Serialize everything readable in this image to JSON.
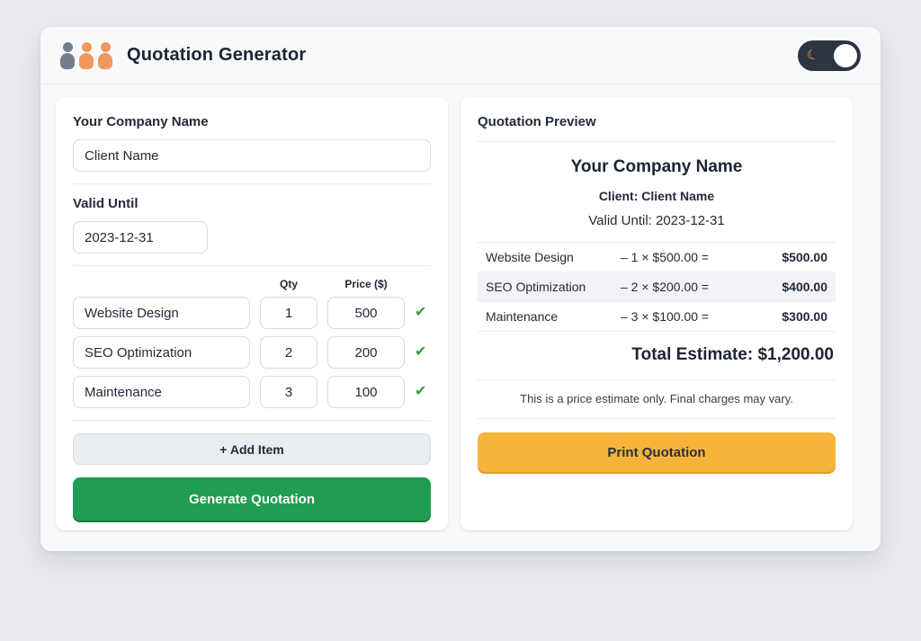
{
  "header": {
    "title": "Quotation Generator",
    "theme_toggle": {
      "moon_glyph": "☾"
    }
  },
  "icons": {
    "check": "✔"
  },
  "form": {
    "company_label": "Your Company Name",
    "company_value": "Client Name",
    "valid_until_label": "Valid Until",
    "valid_until_value": "2023-12-31",
    "qty_header": "Qty",
    "price_header": "Price ($)",
    "items": [
      {
        "name": "Website Design",
        "qty": "1",
        "price": "500"
      },
      {
        "name": "SEO Optimization",
        "qty": "2",
        "price": "200"
      },
      {
        "name": "Maintenance",
        "qty": "3",
        "price": "100"
      }
    ],
    "add_item_label": "+ Add Item",
    "generate_label": "Generate Quotation"
  },
  "preview": {
    "title": "Quotation Preview",
    "company_name": "Your Company Name",
    "client_line": "Client: Client Name",
    "valid_line": "Valid Until: 2023-12-31",
    "rows": [
      {
        "name": "Website Design",
        "formula": "–  1 × $500.00 =",
        "amount": "$500.00"
      },
      {
        "name": "SEO Optimization",
        "formula": "–  2 × $200.00 =",
        "amount": "$400.00"
      },
      {
        "name": "Maintenance",
        "formula": "–  3 × $100.00 =",
        "amount": "$300.00"
      }
    ],
    "total_line": "Total Estimate: $1,200.00",
    "disclaimer": "This is a price estimate only. Final charges may vary.",
    "print_label": "Print Quotation"
  },
  "colors": {
    "accent_green": "#1f9d52",
    "accent_yellow": "#f6b53a",
    "check_green": "#2f9e44",
    "toggle_dark": "#2e3442",
    "logo_gray": "#747d8d",
    "logo_orange": "#f0975f"
  }
}
